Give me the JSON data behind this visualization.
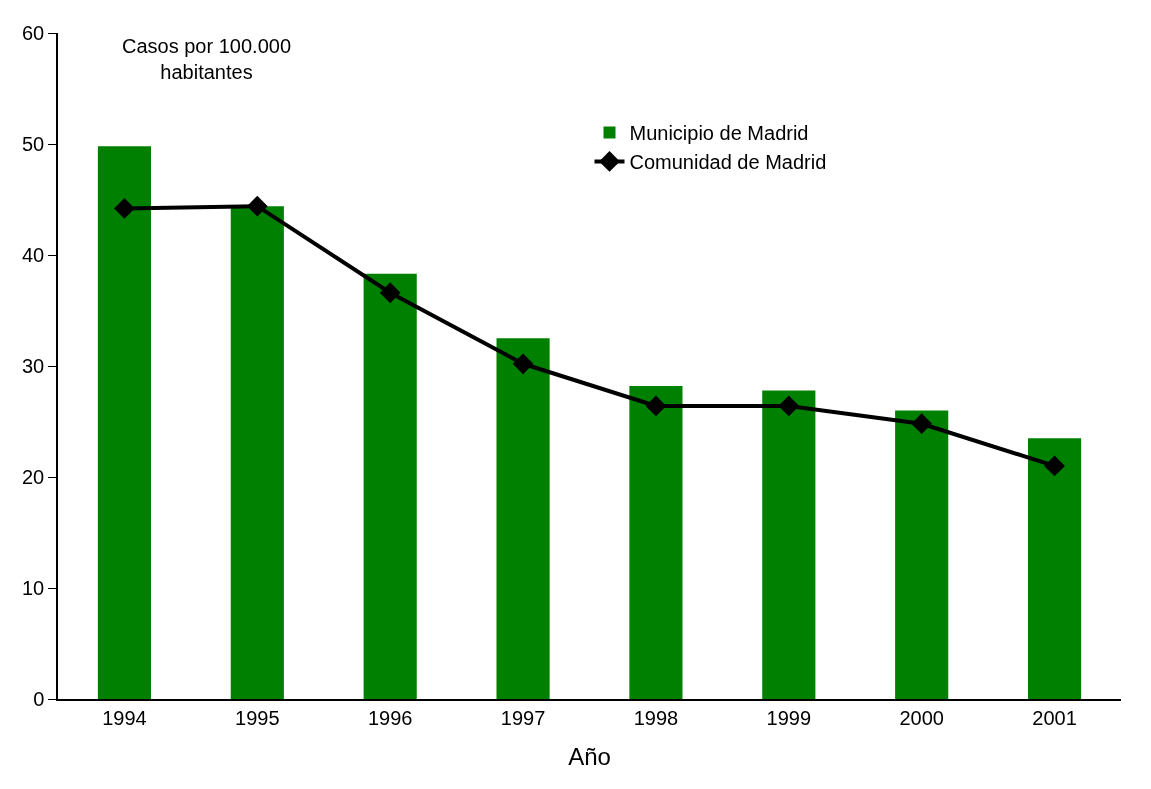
{
  "chart_data": {
    "type": "bar",
    "xlabel": "Año",
    "ylabel": "Casos por 100.000 habitantes",
    "categories": [
      "1994",
      "1995",
      "1996",
      "1997",
      "1998",
      "1999",
      "2000",
      "2001"
    ],
    "series": [
      {
        "name": "Municipio de Madrid",
        "color": "#008000",
        "values": [
          49.8,
          44.4,
          38.3,
          32.5,
          28.2,
          27.8,
          26.0,
          23.5
        ]
      },
      {
        "name": "Comunidad de Madrid",
        "type": "line",
        "color": "#000000",
        "marker": "diamond",
        "line_style": "solid",
        "values": [
          44.2,
          44.4,
          36.6,
          30.2,
          26.4,
          26.4,
          24.8,
          21.0
        ]
      }
    ],
    "ylim": [
      0,
      60
    ],
    "yticks": [
      0,
      10,
      20,
      30,
      40,
      50,
      60
    ],
    "grid": false,
    "legend": "top"
  }
}
